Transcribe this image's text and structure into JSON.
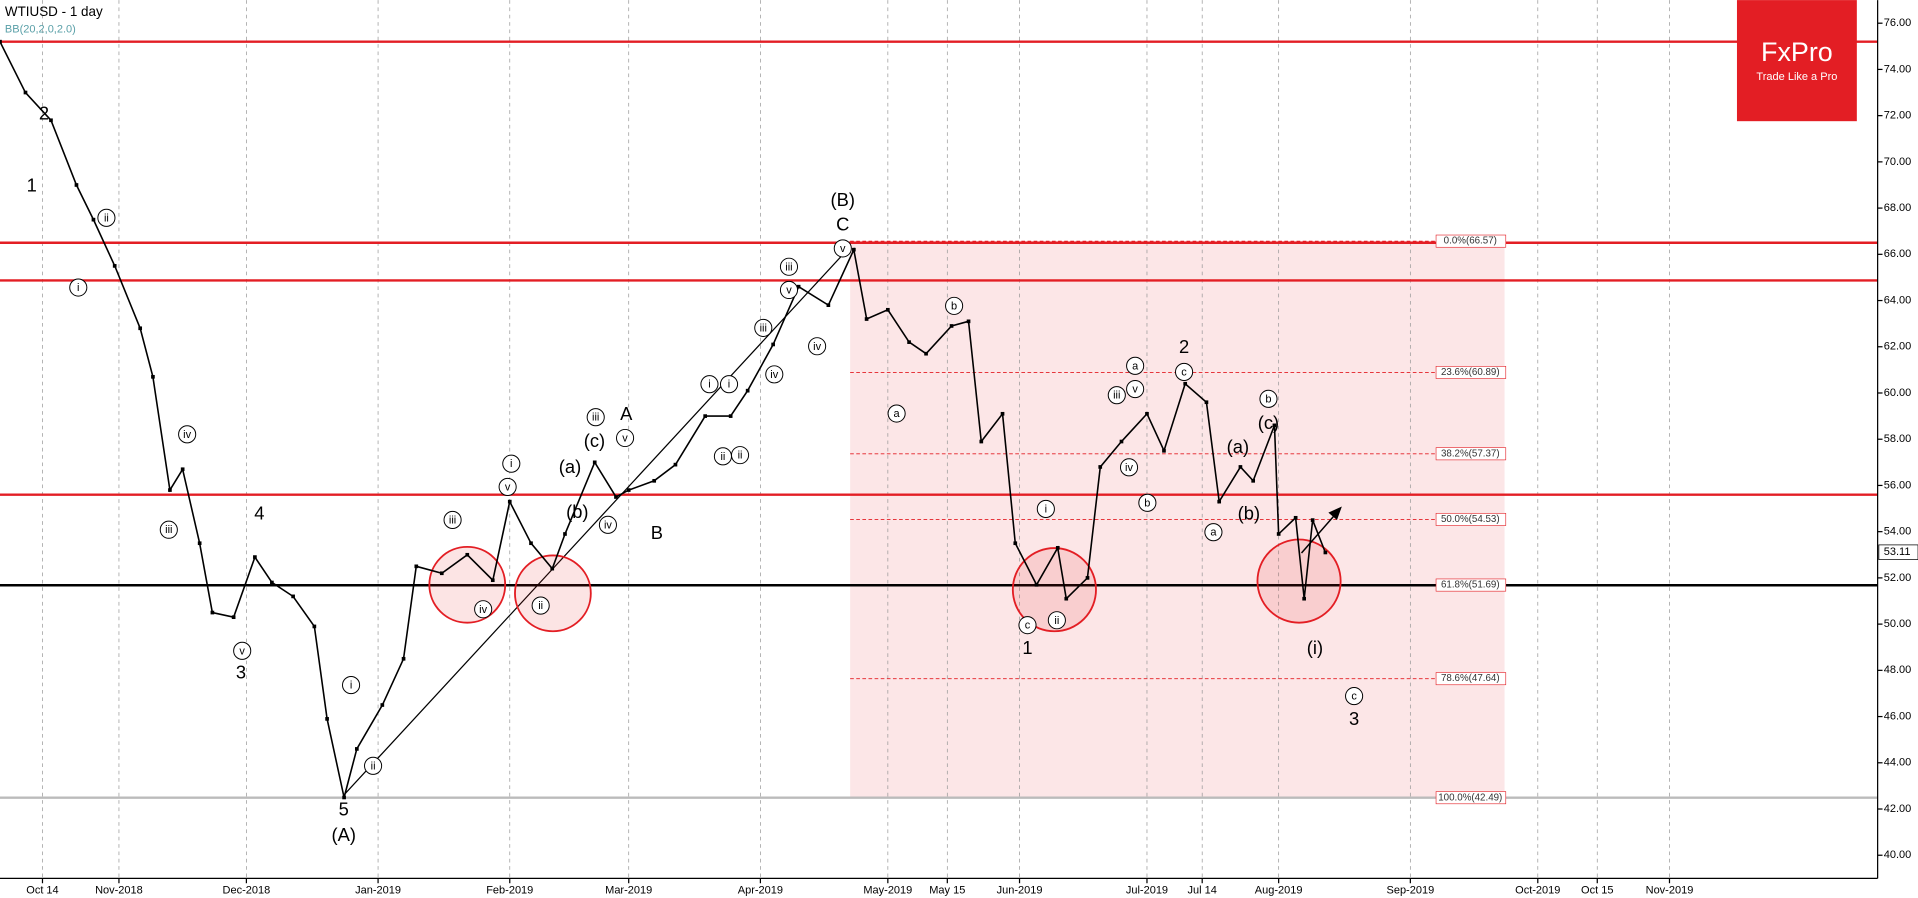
{
  "chart_data": {
    "type": "line",
    "title": "WTIUSD - 1 day",
    "subtitle": "BB(20,2,0,2.0)",
    "logo": {
      "name": "FxPro",
      "tagline": "Trade Like a Pro"
    },
    "last_price": {
      "value": 53.11,
      "label": "53.11"
    },
    "x": [
      "2018-10-04",
      "2018-10-10",
      "2018-10-16",
      "2018-10-22",
      "2018-10-26",
      "2018-10-31",
      "2018-11-06",
      "2018-11-09",
      "2018-11-13",
      "2018-11-16",
      "2018-11-20",
      "2018-11-23",
      "2018-11-28",
      "2018-12-03",
      "2018-12-07",
      "2018-12-12",
      "2018-12-17",
      "2018-12-20",
      "2018-12-24",
      "2018-12-27",
      "2019-01-02",
      "2019-01-07",
      "2019-01-10",
      "2019-01-16",
      "2019-01-22",
      "2019-01-28",
      "2019-02-01",
      "2019-02-06",
      "2019-02-11",
      "2019-02-14",
      "2019-02-21",
      "2019-02-26",
      "2019-03-01",
      "2019-03-07",
      "2019-03-12",
      "2019-03-19",
      "2019-03-25",
      "2019-03-29",
      "2019-04-04",
      "2019-04-10",
      "2019-04-17",
      "2019-04-23",
      "2019-04-26",
      "2019-05-01",
      "2019-05-06",
      "2019-05-10",
      "2019-05-16",
      "2019-05-20",
      "2019-05-23",
      "2019-05-28",
      "2019-05-31",
      "2019-06-05",
      "2019-06-10",
      "2019-06-12",
      "2019-06-17",
      "2019-06-20",
      "2019-06-25",
      "2019-07-01",
      "2019-07-05",
      "2019-07-10",
      "2019-07-15",
      "2019-07-18",
      "2019-07-23",
      "2019-07-26",
      "2019-07-31",
      "2019-08-01",
      "2019-08-05",
      "2019-08-07",
      "2019-08-09",
      "2019-08-12"
    ],
    "series": [
      {
        "name": "WTIUSD",
        "color": "#000000",
        "values": [
          75.2,
          73.0,
          71.8,
          69.0,
          67.5,
          65.5,
          62.8,
          60.7,
          55.8,
          56.7,
          53.5,
          50.5,
          50.3,
          52.9,
          51.8,
          51.2,
          49.9,
          45.9,
          42.5,
          44.6,
          46.5,
          48.5,
          52.5,
          52.2,
          53.0,
          51.9,
          55.3,
          53.5,
          52.4,
          53.9,
          57.0,
          55.5,
          55.8,
          56.2,
          56.9,
          59.0,
          59.0,
          60.1,
          62.1,
          64.6,
          63.8,
          66.2,
          63.2,
          63.6,
          62.2,
          61.7,
          62.9,
          63.1,
          57.9,
          59.1,
          53.5,
          51.7,
          53.3,
          51.1,
          52.0,
          56.8,
          57.9,
          59.1,
          57.5,
          60.4,
          59.6,
          55.3,
          56.8,
          56.2,
          58.6,
          53.9,
          54.6,
          51.1,
          54.5,
          53.1
        ]
      }
    ],
    "xlim": [
      "2018-10-04",
      "2019-12-20"
    ],
    "xticks": [
      {
        "value": "2018-10-14",
        "label": "Oct 14"
      },
      {
        "value": "2018-11-01",
        "label": "Nov-2018"
      },
      {
        "value": "2018-12-01",
        "label": "Dec-2018"
      },
      {
        "value": "2019-01-01",
        "label": "Jan-2019"
      },
      {
        "value": "2019-02-01",
        "label": "Feb-2019"
      },
      {
        "value": "2019-03-01",
        "label": "Mar-2019"
      },
      {
        "value": "2019-04-01",
        "label": "Apr-2019"
      },
      {
        "value": "2019-05-01",
        "label": "May-2019"
      },
      {
        "value": "2019-05-15",
        "label": "May 15"
      },
      {
        "value": "2019-06-01",
        "label": "Jun-2019"
      },
      {
        "value": "2019-07-01",
        "label": "Jul-2019"
      },
      {
        "value": "2019-07-14",
        "label": "Jul 14"
      },
      {
        "value": "2019-08-01",
        "label": "Aug-2019"
      },
      {
        "value": "2019-09-01",
        "label": "Sep-2019"
      },
      {
        "value": "2019-10-01",
        "label": "Oct-2019"
      },
      {
        "value": "2019-10-15",
        "label": "Oct 15"
      },
      {
        "value": "2019-11-01",
        "label": "Nov-2019"
      }
    ],
    "ylim": [
      39,
      77
    ],
    "yticks": [
      {
        "value": 40,
        "label": "40.00"
      },
      {
        "value": 42,
        "label": "42.00"
      },
      {
        "value": 44,
        "label": "44.00"
      },
      {
        "value": 46,
        "label": "46.00"
      },
      {
        "value": 48,
        "label": "48.00"
      },
      {
        "value": 50,
        "label": "50.00"
      },
      {
        "value": 52,
        "label": "52.00"
      },
      {
        "value": 54,
        "label": "54.00"
      },
      {
        "value": 56,
        "label": "56.00"
      },
      {
        "value": 58,
        "label": "58.00"
      },
      {
        "value": 60,
        "label": "60.00"
      },
      {
        "value": 62,
        "label": "62.00"
      },
      {
        "value": 64,
        "label": "64.00"
      },
      {
        "value": 66,
        "label": "66.00"
      },
      {
        "value": 68,
        "label": "68.00"
      },
      {
        "value": 70,
        "label": "70.00"
      },
      {
        "value": 72,
        "label": "72.00"
      },
      {
        "value": 74,
        "label": "74.00"
      },
      {
        "value": 76,
        "label": "76.00"
      }
    ],
    "grid": true,
    "resistance_levels": [
      75.2,
      66.5,
      64.87,
      55.6
    ],
    "support_level": 51.68,
    "fibonacci": [
      {
        "value": 66.57,
        "label": "0.0%(66.57)"
      },
      {
        "value": 60.89,
        "label": "23.6%(60.89)"
      },
      {
        "value": 57.37,
        "label": "38.2%(57.37)"
      },
      {
        "value": 54.53,
        "label": "50.0%(54.53)"
      },
      {
        "value": 51.69,
        "label": "61.8%(51.69)"
      },
      {
        "value": 47.64,
        "label": "78.6%(47.64)"
      },
      {
        "value": 42.49,
        "label": "100.0%(42.49)"
      }
    ],
    "wave_labels": [
      "2",
      "1",
      "ii",
      "i",
      "iv",
      "iii",
      "4",
      "v",
      "3",
      "i",
      "ii",
      "5",
      "(A)",
      "iii",
      "iv",
      "i",
      "v",
      "ii",
      "(a)",
      "(b)",
      "(c)",
      "iii",
      "iv",
      "v",
      "A",
      "B",
      "i",
      "ii",
      "i",
      "ii",
      "iv",
      "iii",
      "v",
      "iii",
      "iv",
      "(B)",
      "C",
      "v",
      "a",
      "b",
      "i",
      "ii",
      "c",
      "1",
      "a",
      "v",
      "iii",
      "iv",
      "b",
      "2",
      "c",
      "a",
      "(a)",
      "b",
      "(c)",
      "(b)",
      "(i)",
      "c",
      "3"
    ]
  }
}
